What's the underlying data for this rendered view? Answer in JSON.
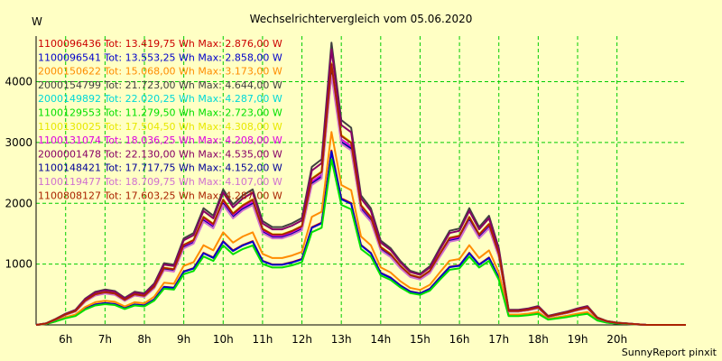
{
  "chart_data": {
    "type": "line",
    "title": "Wechselrichtervergleich vom 05.06.2020",
    "ylabel": "W",
    "xlabel": "",
    "footer": "SunnyReport pinxit",
    "x_unit": "hour",
    "xlim": [
      5.25,
      21.75
    ],
    "ylim": [
      0,
      4750
    ],
    "yticks": [
      1000,
      2000,
      3000,
      4000
    ],
    "xticks": [
      {
        "v": 6,
        "label": "6h"
      },
      {
        "v": 7,
        "label": "7h"
      },
      {
        "v": 8,
        "label": "8h"
      },
      {
        "v": 9,
        "label": "9h"
      },
      {
        "v": 10,
        "label": "10h"
      },
      {
        "v": 11,
        "label": "11h"
      },
      {
        "v": 12,
        "label": "12h"
      },
      {
        "v": 13,
        "label": "13h"
      },
      {
        "v": 14,
        "label": "14h"
      },
      {
        "v": 15,
        "label": "15h"
      },
      {
        "v": 16,
        "label": "16h"
      },
      {
        "v": 17,
        "label": "17h"
      },
      {
        "v": 18,
        "label": "18h"
      },
      {
        "v": 19,
        "label": "19h"
      },
      {
        "v": 20,
        "label": "20h"
      }
    ],
    "grid": true,
    "legend_position": "top-left",
    "x": [
      5.25,
      5.5,
      5.75,
      6,
      6.25,
      6.5,
      6.75,
      7,
      7.25,
      7.5,
      7.75,
      8,
      8.25,
      8.5,
      8.75,
      9,
      9.25,
      9.5,
      9.75,
      10,
      10.25,
      10.5,
      10.75,
      11,
      11.25,
      11.5,
      11.75,
      12,
      12.25,
      12.5,
      12.75,
      13,
      13.25,
      13.5,
      13.75,
      14,
      14.25,
      14.5,
      14.75,
      15,
      15.25,
      15.5,
      15.75,
      16,
      16.25,
      16.5,
      16.75,
      17,
      17.25,
      17.5,
      17.75,
      18,
      18.25,
      18.5,
      18.75,
      19,
      19.25,
      19.5,
      19.75,
      20,
      20.25,
      20.5,
      20.75,
      21,
      21.25,
      21.5,
      21.75
    ],
    "base_shape": [
      0,
      0.02,
      0.08,
      0.15,
      0.2,
      0.35,
      0.44,
      0.47,
      0.45,
      0.36,
      0.44,
      0.42,
      0.55,
      0.82,
      0.8,
      1.15,
      1.22,
      1.55,
      1.45,
      1.8,
      1.6,
      1.72,
      1.8,
      1.38,
      1.3,
      1.3,
      1.35,
      1.42,
      2.1,
      2.2,
      3.75,
      2.72,
      2.62,
      1.72,
      1.55,
      1.12,
      1.02,
      0.85,
      0.72,
      0.68,
      0.78,
      1.02,
      1.25,
      1.28,
      1.55,
      1.3,
      1.45,
      1.02,
      0.2,
      0.2,
      0.22,
      0.25,
      0.12,
      0.15,
      0.18,
      0.22,
      0.25,
      0.1,
      0.05,
      0.03,
      0.02,
      0.01,
      0,
      0,
      0,
      0,
      0
    ],
    "series": [
      {
        "name": "1100096436",
        "total": "13.419,75",
        "max": "2.876,00",
        "color": "#cc0000",
        "scale": 0.765
      },
      {
        "name": "1100096541",
        "total": "13.553,25",
        "max": "2.858,00",
        "color": "#0000cc",
        "scale": 0.76
      },
      {
        "name": "2000150622",
        "total": "15.068,00",
        "max": "3.173,00",
        "color": "#ff8c00",
        "scale": 0.846
      },
      {
        "name": "2000154799",
        "total": "21.723,00",
        "max": "4.644,00",
        "color": "#404040",
        "scale": 1.238
      },
      {
        "name": "2000149892",
        "total": "22.020,25",
        "max": "4.287,00",
        "color": "#00d8d8",
        "scale": 1.143
      },
      {
        "name": "1100129553",
        "total": "11.279,50",
        "max": "2.723,00",
        "color": "#00e000",
        "scale": 0.726
      },
      {
        "name": "1100130025",
        "total": "17.504,50",
        "max": "4.308,00",
        "color": "#e8e800",
        "scale": 1.148
      },
      {
        "name": "1100131074",
        "total": "18.036,25",
        "max": "4.208,00",
        "color": "#dd00dd",
        "scale": 1.122
      },
      {
        "name": "2000001478",
        "total": "22.130,00",
        "max": "4.535,00",
        "color": "#880066",
        "scale": 1.209
      },
      {
        "name": "1100148421",
        "total": "17.717,75",
        "max": "4.152,00",
        "color": "#000099",
        "scale": 1.107
      },
      {
        "name": "1100119477",
        "total": "18.709,75",
        "max": "4.107,00",
        "color": "#d070d0",
        "scale": 1.095
      },
      {
        "name": "1100808127",
        "total": "17.603,25",
        "max": "4.287,00",
        "color": "#aa2200",
        "scale": 1.143
      }
    ],
    "legend_tot_label": "Tot:",
    "legend_max_label": "Wh Max:",
    "legend_unit": "W"
  }
}
